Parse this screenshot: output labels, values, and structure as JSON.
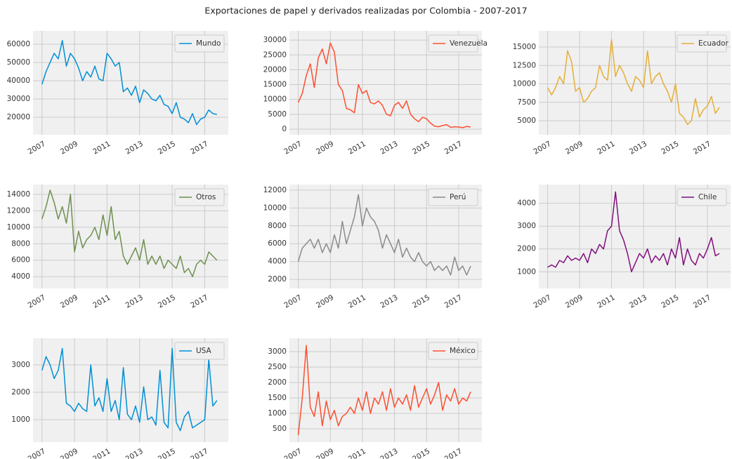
{
  "title": "Exportaciones de papel y derivados realizadas por Colombia - 2007-2017",
  "chart_data": [
    {
      "type": "line",
      "legend": "upper right",
      "grid": true,
      "x": [
        2007,
        2007.25,
        2007.5,
        2007.75,
        2008,
        2008.25,
        2008.5,
        2008.75,
        2009,
        2009.25,
        2009.5,
        2009.75,
        2010,
        2010.25,
        2010.5,
        2010.75,
        2011,
        2011.25,
        2011.5,
        2011.75,
        2012,
        2012.25,
        2012.5,
        2012.75,
        2013,
        2013.25,
        2013.5,
        2013.75,
        2014,
        2014.25,
        2014.5,
        2014.75,
        2015,
        2015.25,
        2015.5,
        2015.75,
        2016,
        2016.25,
        2016.5,
        2016.75,
        2017,
        2017.25,
        2017.5,
        2017.75
      ],
      "xlim": [
        2006.45,
        2018.45
      ],
      "xticks": [
        2007,
        2009,
        2011,
        2013,
        2015,
        2017
      ],
      "ylim": [
        10400,
        67300
      ],
      "yticks": [
        20000,
        30000,
        40000,
        50000,
        60000
      ],
      "series": [
        {
          "name": "Mundo",
          "color": "#008fd5",
          "values": [
            38000,
            45000,
            50000,
            55000,
            52000,
            62000,
            48000,
            55000,
            52000,
            47000,
            40000,
            45000,
            42000,
            48000,
            41000,
            40000,
            55000,
            52000,
            48000,
            50000,
            34000,
            36000,
            32000,
            37000,
            28000,
            35000,
            33000,
            30000,
            29000,
            32000,
            27000,
            26000,
            22000,
            28000,
            20000,
            19000,
            17000,
            22000,
            16000,
            19000,
            20000,
            24000,
            22000,
            21500
          ]
        }
      ]
    },
    {
      "type": "line",
      "legend": "upper right",
      "grid": true,
      "x": [
        2007,
        2007.25,
        2007.5,
        2007.75,
        2008,
        2008.25,
        2008.5,
        2008.75,
        2009,
        2009.25,
        2009.5,
        2009.75,
        2010,
        2010.25,
        2010.5,
        2010.75,
        2011,
        2011.25,
        2011.5,
        2011.75,
        2012,
        2012.25,
        2012.5,
        2012.75,
        2013,
        2013.25,
        2013.5,
        2013.75,
        2014,
        2014.25,
        2014.5,
        2014.75,
        2015,
        2015.25,
        2015.5,
        2015.75,
        2016,
        2016.25,
        2016.5,
        2016.75,
        2017,
        2017.25,
        2017.5,
        2017.75
      ],
      "xlim": [
        2006.45,
        2018.45
      ],
      "xticks": [
        2007,
        2009,
        2011,
        2013,
        2015,
        2017
      ],
      "ylim": [
        -1900,
        33100
      ],
      "yticks": [
        0,
        5000,
        10000,
        15000,
        20000,
        25000,
        30000
      ],
      "series": [
        {
          "name": "Venezuela",
          "color": "#fc4f30",
          "values": [
            9000,
            12000,
            18000,
            22000,
            14000,
            24000,
            27000,
            22000,
            29000,
            26000,
            15000,
            13000,
            7000,
            6500,
            5500,
            15000,
            12000,
            13000,
            9000,
            8500,
            9500,
            8000,
            5000,
            4500,
            8000,
            9000,
            7000,
            9500,
            5000,
            3500,
            2500,
            4000,
            3500,
            2000,
            1000,
            800,
            1200,
            1500,
            600,
            800,
            700,
            500,
            900,
            700
          ]
        }
      ]
    },
    {
      "type": "line",
      "legend": "upper right",
      "grid": true,
      "x": [
        2007,
        2007.25,
        2007.5,
        2007.75,
        2008,
        2008.25,
        2008.5,
        2008.75,
        2009,
        2009.25,
        2009.5,
        2009.75,
        2010,
        2010.25,
        2010.5,
        2010.75,
        2011,
        2011.25,
        2011.5,
        2011.75,
        2012,
        2012.25,
        2012.5,
        2012.75,
        2013,
        2013.25,
        2013.5,
        2013.75,
        2014,
        2014.25,
        2014.5,
        2014.75,
        2015,
        2015.25,
        2015.5,
        2015.75,
        2016,
        2016.25,
        2016.5,
        2016.75,
        2017,
        2017.25,
        2017.5,
        2017.75
      ],
      "xlim": [
        2006.45,
        2018.45
      ],
      "xticks": [
        2007,
        2009,
        2011,
        2013,
        2015,
        2017
      ],
      "ylim": [
        3100,
        17190
      ],
      "yticks": [
        5000,
        7500,
        10000,
        12500,
        15000
      ],
      "series": [
        {
          "name": "Ecuador",
          "color": "#e5ae38",
          "values": [
            9500,
            8500,
            9500,
            11000,
            10000,
            14500,
            13000,
            9000,
            9500,
            7500,
            8000,
            9000,
            9500,
            12500,
            11000,
            10500,
            16000,
            11000,
            12500,
            11500,
            10000,
            9000,
            11000,
            10500,
            9500,
            14500,
            10000,
            11000,
            11500,
            10000,
            9000,
            7500,
            10000,
            6000,
            5500,
            4500,
            5000,
            8000,
            5500,
            6500,
            7000,
            8300,
            6000,
            6800
          ]
        }
      ]
    },
    {
      "type": "line",
      "legend": "upper right",
      "grid": true,
      "x": [
        2007,
        2007.25,
        2007.5,
        2007.75,
        2008,
        2008.25,
        2008.5,
        2008.75,
        2009,
        2009.25,
        2009.5,
        2009.75,
        2010,
        2010.25,
        2010.5,
        2010.75,
        2011,
        2011.25,
        2011.5,
        2011.75,
        2012,
        2012.25,
        2012.5,
        2012.75,
        2013,
        2013.25,
        2013.5,
        2013.75,
        2014,
        2014.25,
        2014.5,
        2014.75,
        2015,
        2015.25,
        2015.5,
        2015.75,
        2016,
        2016.25,
        2016.5,
        2016.75,
        2017,
        2017.25,
        2017.5,
        2017.75
      ],
      "xlim": [
        2006.45,
        2018.45
      ],
      "xticks": [
        2007,
        2009,
        2011,
        2013,
        2015,
        2017
      ],
      "ylim": [
        2570,
        15180
      ],
      "yticks": [
        4000,
        6000,
        8000,
        10000,
        12000,
        14000
      ],
      "series": [
        {
          "name": "Otros",
          "color": "#6d904f",
          "values": [
            11000,
            12500,
            14500,
            13000,
            11000,
            12500,
            10500,
            14000,
            7000,
            9500,
            7500,
            8500,
            9000,
            10000,
            8500,
            11500,
            9000,
            12500,
            8500,
            9500,
            6500,
            5500,
            6500,
            7500,
            6000,
            8500,
            5500,
            6500,
            5500,
            6500,
            5000,
            6000,
            5500,
            5000,
            6500,
            4500,
            5000,
            4000,
            5500,
            6000,
            5500,
            7000,
            6500,
            6000
          ]
        }
      ]
    },
    {
      "type": "line",
      "legend": "upper right",
      "grid": true,
      "x": [
        2007,
        2007.25,
        2007.5,
        2007.75,
        2008,
        2008.25,
        2008.5,
        2008.75,
        2009,
        2009.25,
        2009.5,
        2009.75,
        2010,
        2010.25,
        2010.5,
        2010.75,
        2011,
        2011.25,
        2011.5,
        2011.75,
        2012,
        2012.25,
        2012.5,
        2012.75,
        2013,
        2013.25,
        2013.5,
        2013.75,
        2014,
        2014.25,
        2014.5,
        2014.75,
        2015,
        2015.25,
        2015.5,
        2015.75,
        2016,
        2016.25,
        2016.5,
        2016.75,
        2017,
        2017.25,
        2017.5,
        2017.75
      ],
      "xlim": [
        2006.45,
        2018.45
      ],
      "xticks": [
        2007,
        2009,
        2011,
        2013,
        2015,
        2017
      ],
      "ylim": [
        990,
        12620
      ],
      "yticks": [
        2000,
        4000,
        6000,
        8000,
        10000,
        12000
      ],
      "series": [
        {
          "name": "Perú",
          "color": "#8b8b8b",
          "values": [
            4000,
            5500,
            6000,
            6500,
            5500,
            6500,
            5000,
            6000,
            5000,
            7000,
            5500,
            8500,
            6000,
            7500,
            9000,
            11500,
            8000,
            10000,
            9000,
            8500,
            7500,
            5500,
            7000,
            6000,
            5000,
            6500,
            4500,
            5500,
            4500,
            4000,
            5000,
            4000,
            3500,
            4000,
            3000,
            3500,
            3000,
            3500,
            2500,
            4500,
            3000,
            3500,
            2500,
            3500
          ]
        }
      ]
    },
    {
      "type": "line",
      "legend": "upper right",
      "grid": true,
      "x": [
        2007,
        2007.25,
        2007.5,
        2007.75,
        2008,
        2008.25,
        2008.5,
        2008.75,
        2009,
        2009.25,
        2009.5,
        2009.75,
        2010,
        2010.25,
        2010.5,
        2010.75,
        2011,
        2011.25,
        2011.5,
        2011.75,
        2012,
        2012.25,
        2012.5,
        2012.75,
        2013,
        2013.25,
        2013.5,
        2013.75,
        2014,
        2014.25,
        2014.5,
        2014.75,
        2015,
        2015.25,
        2015.5,
        2015.75,
        2016,
        2016.25,
        2016.5,
        2016.75,
        2017,
        2017.25,
        2017.5,
        2017.75
      ],
      "xlim": [
        2006.45,
        2018.45
      ],
      "xticks": [
        2007,
        2009,
        2011,
        2013,
        2015,
        2017
      ],
      "ylim": [
        270,
        4820
      ],
      "yticks": [
        1000,
        2000,
        3000,
        4000
      ],
      "series": [
        {
          "name": "Chile",
          "color": "#810f7c",
          "values": [
            1200,
            1300,
            1200,
            1500,
            1400,
            1700,
            1500,
            1600,
            1500,
            1800,
            1400,
            2000,
            1800,
            2200,
            2000,
            2800,
            3000,
            4500,
            2800,
            2400,
            1800,
            1000,
            1400,
            1800,
            1600,
            2000,
            1400,
            1700,
            1500,
            1800,
            1300,
            2000,
            1600,
            2500,
            1300,
            2000,
            1500,
            1300,
            1800,
            1600,
            2000,
            2500,
            1700,
            1800
          ]
        }
      ]
    },
    {
      "type": "line",
      "legend": "upper right",
      "grid": true,
      "x": [
        2007,
        2007.25,
        2007.5,
        2007.75,
        2008,
        2008.25,
        2008.5,
        2008.75,
        2009,
        2009.25,
        2009.5,
        2009.75,
        2010,
        2010.25,
        2010.5,
        2010.75,
        2011,
        2011.25,
        2011.5,
        2011.75,
        2012,
        2012.25,
        2012.5,
        2012.75,
        2013,
        2013.25,
        2013.5,
        2013.75,
        2014,
        2014.25,
        2014.5,
        2014.75,
        2015,
        2015.25,
        2015.5,
        2015.75,
        2016,
        2016.25,
        2016.5,
        2016.75,
        2017,
        2017.25,
        2017.5,
        2017.75
      ],
      "xlim": [
        2006.45,
        2018.45
      ],
      "xticks": [
        2007,
        2009,
        2011,
        2013,
        2015,
        2017
      ],
      "ylim": [
        180,
        3970
      ],
      "yticks": [
        1000,
        2000,
        3000
      ],
      "series": [
        {
          "name": "USA",
          "color": "#008fd5",
          "values": [
            2800,
            3300,
            3000,
            2500,
            2800,
            3600,
            1600,
            1500,
            1300,
            1600,
            1400,
            1300,
            3000,
            1500,
            1800,
            1300,
            2500,
            1300,
            1700,
            1000,
            2900,
            1200,
            1000,
            1500,
            900,
            2200,
            1000,
            1100,
            800,
            2800,
            900,
            700,
            3600,
            900,
            600,
            1100,
            1300,
            700,
            800,
            900,
            1000,
            3200,
            1500,
            1700
          ]
        }
      ]
    },
    {
      "type": "line",
      "legend": "upper right",
      "grid": true,
      "x": [
        2007,
        2007.25,
        2007.5,
        2007.75,
        2008,
        2008.25,
        2008.5,
        2008.75,
        2009,
        2009.25,
        2009.5,
        2009.75,
        2010,
        2010.25,
        2010.5,
        2010.75,
        2011,
        2011.25,
        2011.5,
        2011.75,
        2012,
        2012.25,
        2012.5,
        2012.75,
        2013,
        2013.25,
        2013.5,
        2013.75,
        2014,
        2014.25,
        2014.5,
        2014.75,
        2015,
        2015.25,
        2015.5,
        2015.75,
        2016,
        2016.25,
        2016.5,
        2016.75,
        2017,
        2017.25,
        2017.5,
        2017.75
      ],
      "xlim": [
        2006.45,
        2018.45
      ],
      "xticks": [
        2007,
        2009,
        2011,
        2013,
        2015,
        2017
      ],
      "ylim": [
        70,
        3430
      ],
      "yticks": [
        500,
        1000,
        1500,
        2000,
        2500,
        3000
      ],
      "series": [
        {
          "name": "México",
          "color": "#fc4f30",
          "values": [
            300,
            1500,
            3200,
            1200,
            900,
            1700,
            600,
            1400,
            800,
            1100,
            600,
            900,
            1000,
            1200,
            1000,
            1500,
            1100,
            1700,
            1000,
            1500,
            1300,
            1700,
            1100,
            1800,
            1200,
            1500,
            1300,
            1600,
            1100,
            1900,
            1200,
            1500,
            1800,
            1300,
            1600,
            2000,
            1100,
            1600,
            1400,
            1800,
            1300,
            1500,
            1400,
            1700
          ]
        }
      ]
    }
  ]
}
